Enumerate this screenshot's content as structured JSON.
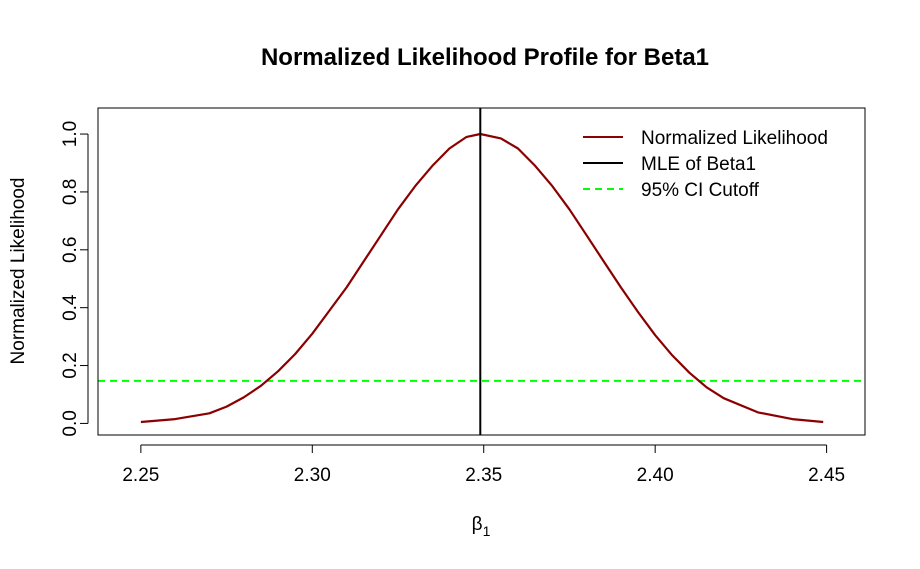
{
  "chart_data": {
    "type": "line",
    "title": "Normalized Likelihood Profile for Beta1",
    "xlabel_symbol": "β",
    "xlabel_subscript": "1",
    "ylabel": "Normalized Likelihood",
    "xlim": [
      2.2375,
      2.4612
    ],
    "ylim": [
      -0.04,
      1.09
    ],
    "x_ticks": [
      2.25,
      2.3,
      2.35,
      2.4,
      2.45
    ],
    "x_tick_labels": [
      "2.25",
      "2.30",
      "2.35",
      "2.40",
      "2.45"
    ],
    "y_ticks": [
      0.0,
      0.2,
      0.4,
      0.6,
      0.8,
      1.0
    ],
    "y_tick_labels": [
      "0.0",
      "0.2",
      "0.4",
      "0.6",
      "0.8",
      "1.0"
    ],
    "grid": false,
    "legend_position": "top-right",
    "series": [
      {
        "name": "Normalized Likelihood",
        "color": "#8B0000",
        "style": "solid",
        "x": [
          2.25,
          2.26,
          2.27,
          2.275,
          2.28,
          2.285,
          2.29,
          2.295,
          2.3,
          2.305,
          2.31,
          2.315,
          2.32,
          2.325,
          2.33,
          2.335,
          2.34,
          2.345,
          2.349,
          2.355,
          2.36,
          2.365,
          2.37,
          2.375,
          2.38,
          2.385,
          2.39,
          2.395,
          2.4,
          2.405,
          2.41,
          2.415,
          2.42,
          2.43,
          2.44,
          2.449
        ],
        "y": [
          0.005,
          0.015,
          0.035,
          0.058,
          0.09,
          0.13,
          0.18,
          0.24,
          0.31,
          0.39,
          0.47,
          0.56,
          0.65,
          0.74,
          0.82,
          0.89,
          0.95,
          0.99,
          1.0,
          0.985,
          0.95,
          0.89,
          0.82,
          0.74,
          0.65,
          0.56,
          0.47,
          0.385,
          0.305,
          0.235,
          0.175,
          0.125,
          0.087,
          0.038,
          0.015,
          0.005
        ]
      },
      {
        "name": "MLE of Beta1",
        "color": "#000000",
        "style": "solid",
        "vline_x": 2.349
      },
      {
        "name": "95% CI Cutoff",
        "color": "#00ff00",
        "style": "dashed",
        "hline_y": 0.147
      }
    ]
  }
}
